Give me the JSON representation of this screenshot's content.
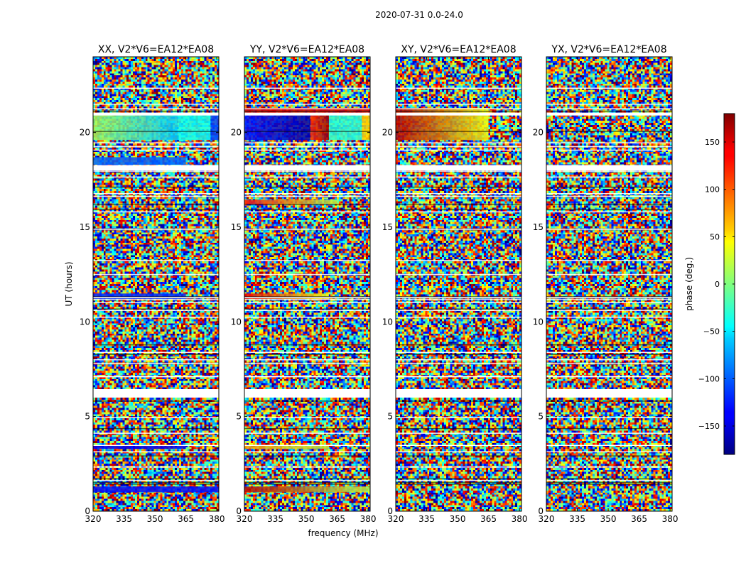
{
  "chart_data": {
    "type": "heatmap",
    "suptitle": "2020-07-31 0.0-24.0",
    "xlabel": "frequency (MHz)",
    "ylabel": "UT (hours)",
    "xlim": [
      320,
      381
    ],
    "ylim": [
      0,
      24
    ],
    "xticks": [
      320,
      335,
      350,
      365,
      380
    ],
    "xtick_labels": [
      "320",
      "335",
      "350",
      "365",
      "380"
    ],
    "yticks": [
      0,
      5,
      10,
      15,
      20
    ],
    "ytick_labels": [
      "0",
      "5",
      "10",
      "15",
      "20"
    ],
    "colorbar": {
      "label": "phase (deg.)",
      "range": [
        -180,
        180
      ],
      "ticks": [
        150,
        100,
        50,
        0,
        -50,
        -100,
        -150
      ],
      "tick_labels": [
        "150",
        "100",
        "50",
        "0",
        "−50",
        "−100",
        "−150"
      ],
      "colormap": "jet"
    },
    "flagged_gaps_hours": [
      [
        6.0,
        6.45
      ],
      [
        18.0,
        18.25
      ],
      [
        20.9,
        21.05
      ],
      [
        11.25,
        11.32
      ],
      [
        3.45,
        3.5
      ]
    ],
    "coherent_bands": {
      "XX": [
        {
          "ut": [
            19.6,
            21.0
          ],
          "freq": [
            320,
            361
          ],
          "phase": [
            10,
            -60
          ]
        },
        {
          "ut": [
            19.6,
            21.0
          ],
          "freq": [
            361,
            377
          ],
          "phase": [
            -40,
            -40
          ]
        },
        {
          "ut": [
            19.6,
            21.0
          ],
          "freq": [
            377,
            381
          ],
          "phase": [
            -110,
            -110
          ]
        },
        {
          "ut": [
            18.3,
            18.7
          ],
          "freq": [
            320,
            365
          ],
          "phase": [
            -100,
            -100
          ]
        },
        {
          "ut": [
            11.2,
            11.5
          ],
          "freq": [
            320,
            365
          ],
          "phase": [
            -120,
            -120
          ]
        },
        {
          "ut": [
            1.0,
            1.3
          ],
          "freq": [
            320,
            381
          ],
          "phase": [
            -130,
            -130
          ]
        },
        {
          "ut": [
            3.3,
            3.5
          ],
          "freq": [
            320,
            365
          ],
          "phase": [
            -140,
            -140
          ]
        }
      ],
      "YY": [
        {
          "ut": [
            19.6,
            21.0
          ],
          "freq": [
            320,
            352
          ],
          "phase": [
            -130,
            -165
          ]
        },
        {
          "ut": [
            19.6,
            21.0
          ],
          "freq": [
            352,
            361
          ],
          "phase": [
            120,
            170
          ]
        },
        {
          "ut": [
            19.6,
            21.0
          ],
          "freq": [
            361,
            377
          ],
          "phase": [
            -30,
            -30
          ]
        },
        {
          "ut": [
            19.6,
            21.0
          ],
          "freq": [
            377,
            381
          ],
          "phase": [
            60,
            60
          ]
        },
        {
          "ut": [
            21.05,
            21.3
          ],
          "freq": [
            320,
            381
          ],
          "phase": [
            150,
            150
          ]
        },
        {
          "ut": [
            11.2,
            11.5
          ],
          "freq": [
            320,
            361
          ],
          "phase": [
            140,
            40
          ]
        },
        {
          "ut": [
            16.2,
            16.45
          ],
          "freq": [
            320,
            365
          ],
          "phase": [
            130,
            20
          ]
        },
        {
          "ut": [
            1.0,
            1.3
          ],
          "freq": [
            320,
            381
          ],
          "phase": [
            160,
            20
          ]
        },
        {
          "ut": [
            3.3,
            3.5
          ],
          "freq": [
            320,
            361
          ],
          "phase": [
            80,
            20
          ]
        }
      ],
      "XY": [
        {
          "ut": [
            19.6,
            21.3
          ],
          "freq": [
            320,
            365
          ],
          "phase": [
            160,
            40
          ]
        }
      ],
      "YX": []
    },
    "panels": [
      {
        "key": "XX",
        "title": "XX, V2*V6=EA12*EA08",
        "seed": 11
      },
      {
        "key": "YY",
        "title": "YY, V2*V6=EA12*EA08",
        "seed": 23
      },
      {
        "key": "XY",
        "title": "XY, V2*V6=EA12*EA08",
        "seed": 37
      },
      {
        "key": "YX",
        "title": "YX, V2*V6=EA12*EA08",
        "seed": 53
      }
    ]
  }
}
